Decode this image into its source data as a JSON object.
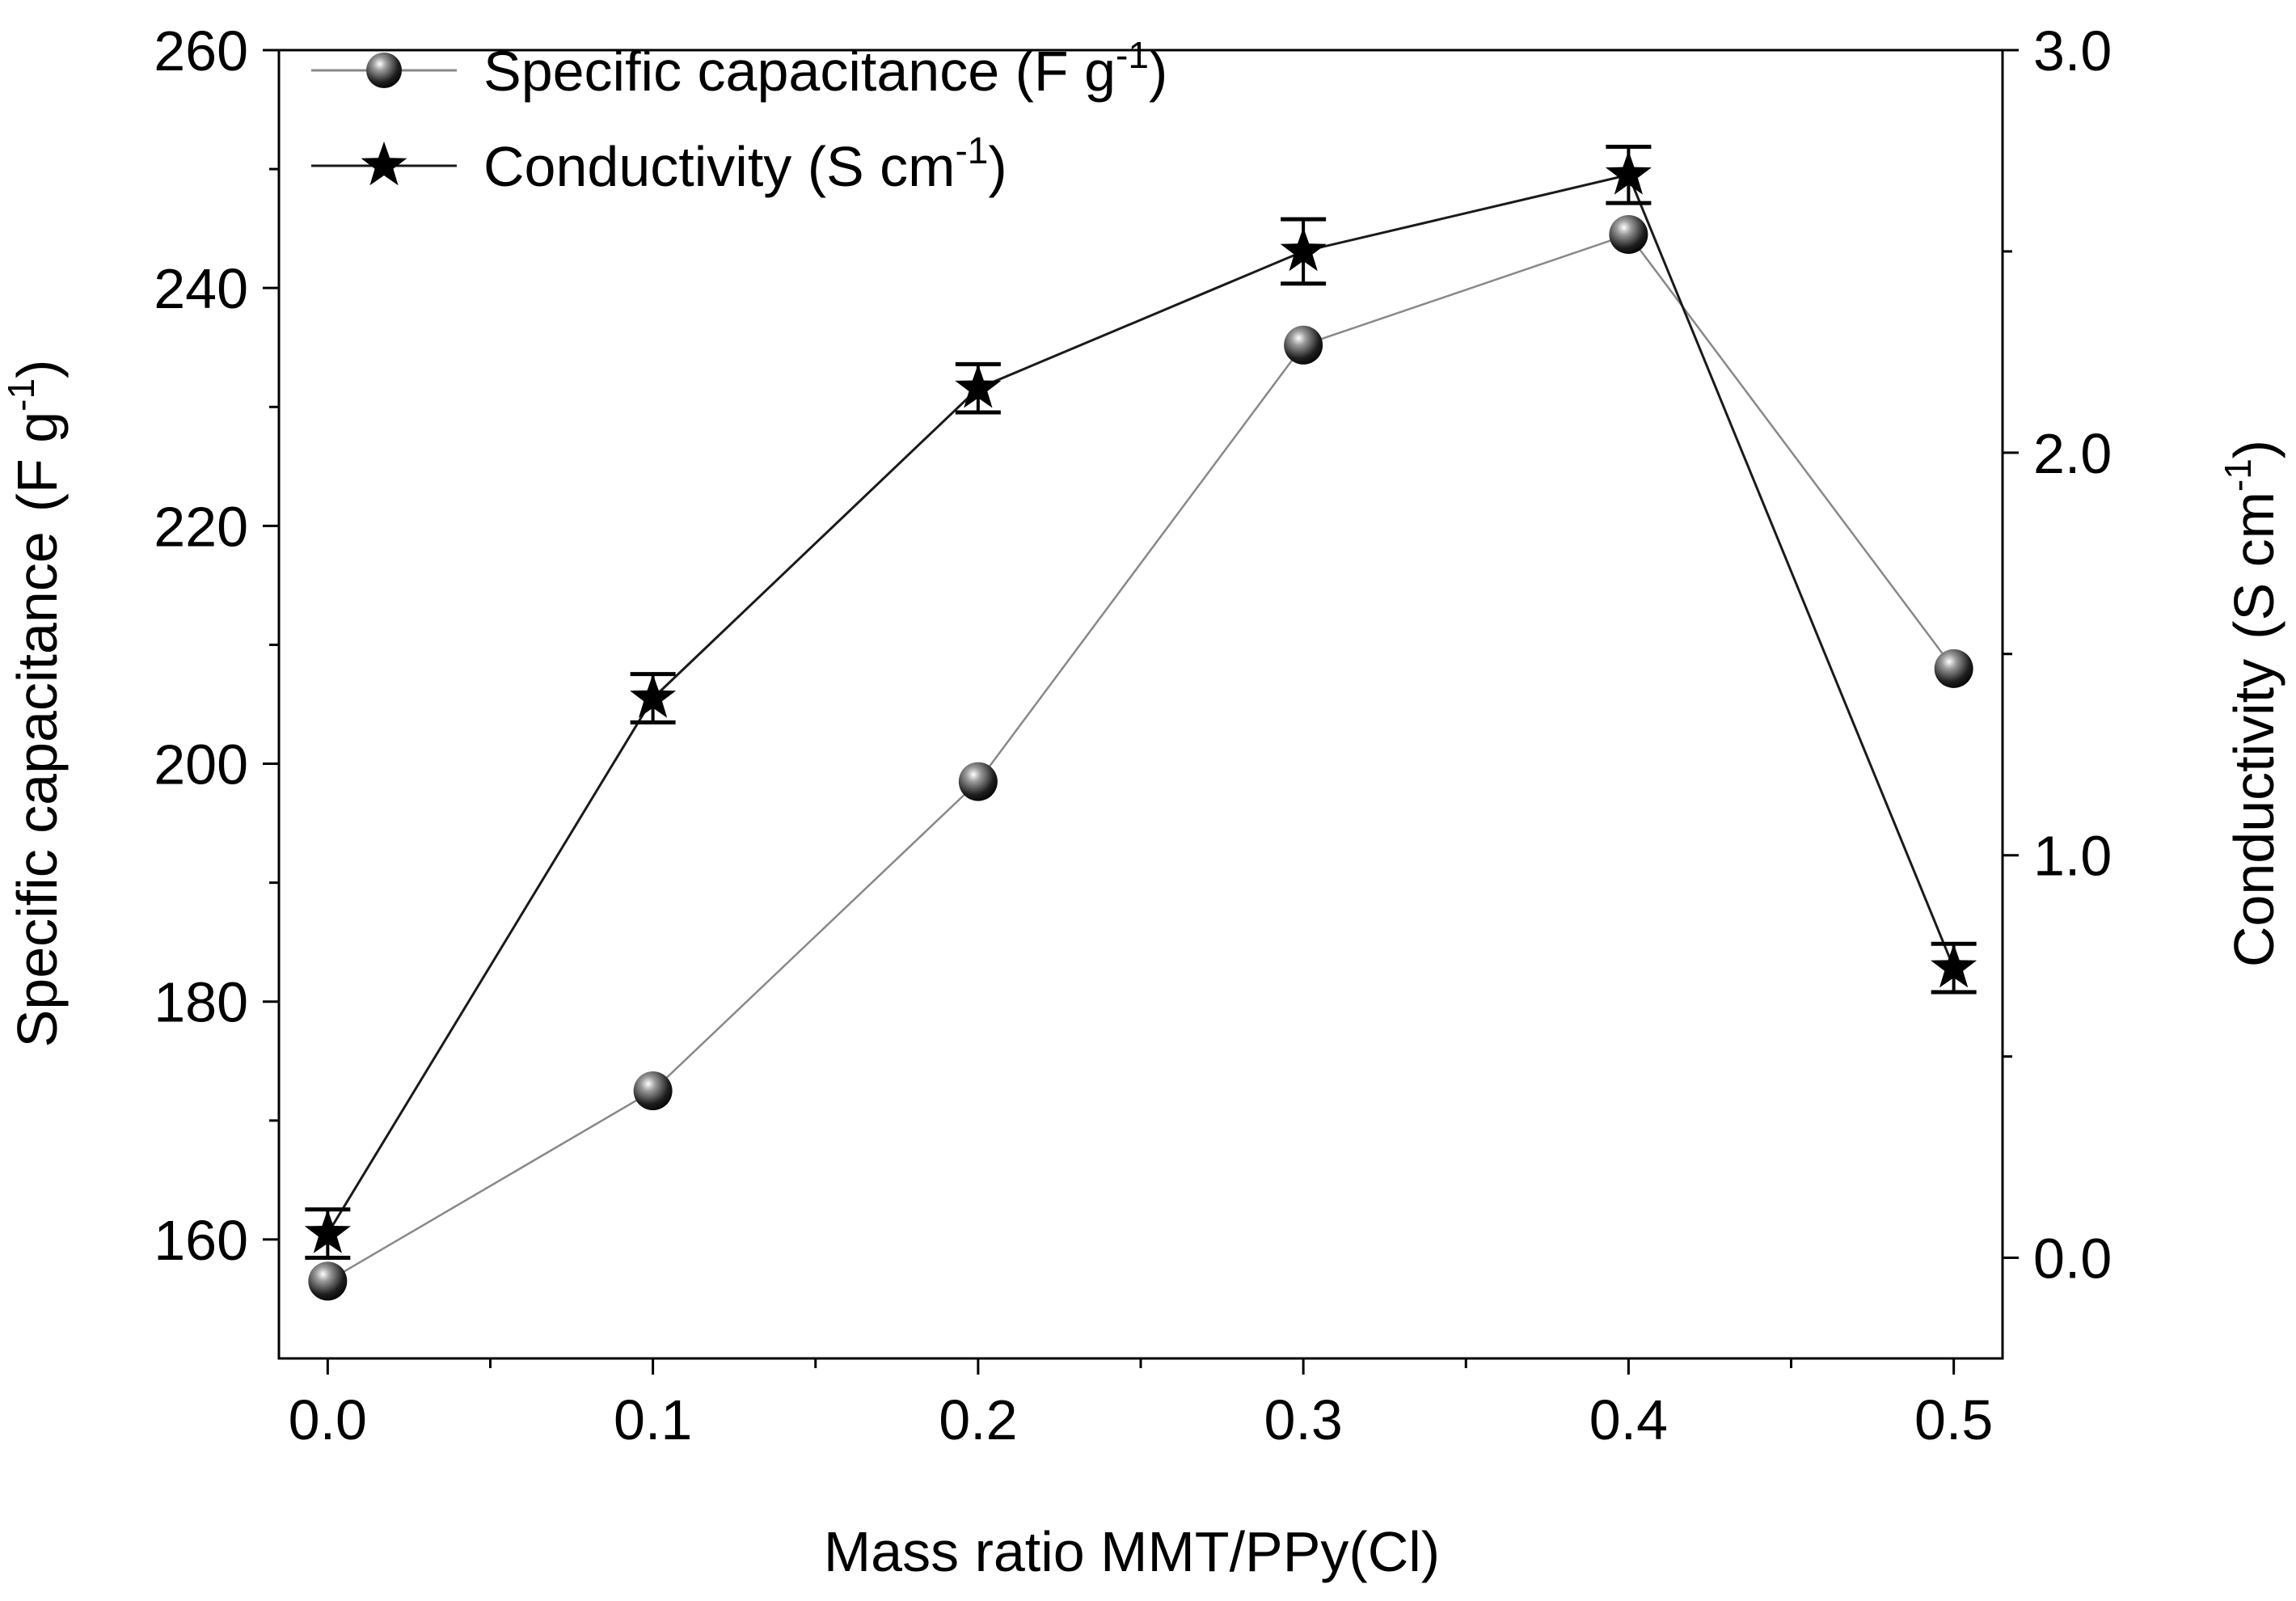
{
  "chart_data": {
    "type": "line",
    "x": [
      0.0,
      0.1,
      0.2,
      0.3,
      0.4,
      0.5
    ],
    "xlabel": "Mass ratio MMT/PPy(Cl)",
    "xlim": [
      -0.015,
      0.515
    ],
    "xticks": [
      0.0,
      0.1,
      0.2,
      0.3,
      0.4,
      0.5
    ],
    "xtick_labels": [
      "0.0",
      "0.1",
      "0.2",
      "0.3",
      "0.4",
      "0.5"
    ],
    "left_axis": {
      "label_text": "Specific capacitance",
      "label_unit": "(F g",
      "label_sup": "-1",
      "label_close": ")",
      "ylim": [
        150,
        260
      ],
      "ticks": [
        160,
        180,
        200,
        220,
        240,
        260
      ],
      "tick_labels": [
        "160",
        "180",
        "200",
        "220",
        "240",
        "260"
      ]
    },
    "right_axis": {
      "label_text": "Conductivity",
      "label_unit": "(S cm",
      "label_sup": "-1",
      "label_close": ")",
      "ylim": [
        -0.25,
        3.0
      ],
      "ticks": [
        0.0,
        1.0,
        2.0,
        3.0
      ],
      "tick_labels": [
        "0.0",
        "1.0",
        "2.0",
        "3.0"
      ]
    },
    "series": [
      {
        "name": "Specific capacitance (F g-1)",
        "legend_text": "Specific capacitance (F g",
        "legend_sup": "-1",
        "legend_close": ")",
        "axis": "left",
        "marker": "sphere",
        "color": "#888888",
        "values": [
          156.5,
          172.5,
          198.5,
          235.2,
          244.5,
          208.0
        ]
      },
      {
        "name": "Conductivity (S cm-1)",
        "legend_text": "Conductivity (S cm",
        "legend_sup": "-1",
        "legend_close": ")",
        "axis": "right",
        "marker": "star",
        "color": "#1a1a1a",
        "values": [
          0.06,
          1.39,
          2.16,
          2.5,
          2.69,
          0.72
        ],
        "errors": [
          0.06,
          0.06,
          0.06,
          0.08,
          0.07,
          0.06
        ]
      }
    ],
    "legend_position": "top-left"
  }
}
